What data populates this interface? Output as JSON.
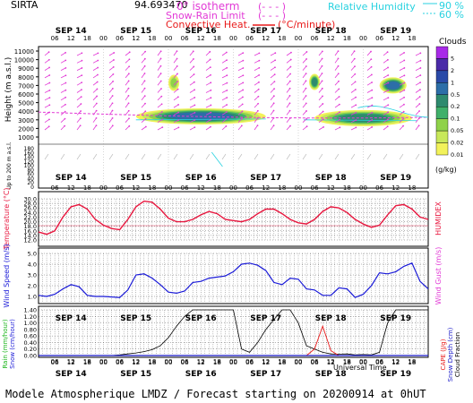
{
  "header": {
    "station": "SIRTA",
    "coords": "94.693470",
    "legend_isotherm": "0° isotherm",
    "legend_isotherm_mark": "(- - - )",
    "legend_snow_rain": "Snow-Rain Limit",
    "legend_snow_rain_mark": "(- - - )",
    "legend_convective": "Convective Heat.",
    "legend_convective_unit": "(°C/minute)",
    "legend_rh": "Relative Humidity",
    "legend_rh_90": "90 %",
    "legend_rh_60": "60 %"
  },
  "footer": {
    "model": "Modele Atmospherique LMDZ / Forecast starting on 20200914 at 0hUT",
    "time_label": "Universal Time"
  },
  "colors": {
    "temperature": "#e8173f",
    "wind": "#1a1ad8",
    "magenta": "#e23ad6",
    "cyan": "#28d2e0",
    "rain": "#18b418",
    "snow": "#2222d8",
    "cape": "#e81a1a",
    "snow_depth": "#1818c8",
    "cloud_fraction": "#000000"
  },
  "days": [
    "SEP 14",
    "SEP 15",
    "SEP 16",
    "SEP 17",
    "SEP 18",
    "SEP 19"
  ],
  "hours": [
    "06",
    "12",
    "18",
    "00"
  ],
  "chart_data": [
    {
      "type": "heatmap",
      "name": "clouds",
      "title": "Clouds",
      "ylabel": "Height (m a.s.l.)",
      "ylabel_low": "Up to 200 m a.s.l.",
      "colorbar_title": "Clouds",
      "colorbar_unit": "(g/kg)",
      "colorbar_ticks": [
        "0.01",
        "0.02",
        "0.05",
        "0.1",
        "0.2",
        "0.5",
        "1",
        "2",
        "5"
      ],
      "colorbar_colors": [
        "#f2f25a",
        "#c8e85a",
        "#8fd24a",
        "#3fb06a",
        "#2e8a6e",
        "#2c6ea8",
        "#2a4aa8",
        "#4a2aa8",
        "#a82ae8"
      ],
      "y_ticks_upper": [
        11000,
        10000,
        9000,
        8000,
        7000,
        6000,
        5000,
        4000,
        3000,
        2000,
        1000
      ],
      "y_ticks_lower": [
        180,
        160,
        140,
        120,
        100,
        80,
        60,
        40,
        20,
        0
      ],
      "cloud_layers": [
        {
          "start_h": 36,
          "end_h": 84,
          "height_m": 3400,
          "max": "0.5"
        },
        {
          "start_h": 102,
          "end_h": 138,
          "height_m": 3200,
          "max": "0.2"
        },
        {
          "start_h": 100,
          "end_h": 104,
          "height_m": 7400,
          "max": "0.2"
        },
        {
          "start_h": 126,
          "end_h": 136,
          "height_m": 7000,
          "max": "0.5"
        },
        {
          "start_h": 48,
          "end_h": 52,
          "height_m": 7300,
          "max": "0.05"
        }
      ]
    },
    {
      "type": "line",
      "name": "temperature",
      "ylabel": "Temperature (°C)",
      "ylabel_right": "HUMIDEX",
      "yticks": [
        30.0,
        28.0,
        26.0,
        24.0,
        22.0,
        20.0,
        18.0,
        16.0,
        14.0,
        12.0
      ],
      "ylim": [
        12,
        30
      ],
      "x_hours": [
        0,
        3,
        6,
        9,
        12,
        15,
        18,
        21,
        24,
        27,
        30,
        33,
        36,
        39,
        42,
        45,
        48,
        51,
        54,
        57,
        60,
        63,
        66,
        69,
        72,
        75,
        78,
        81,
        84,
        87,
        90,
        93,
        96,
        99,
        102,
        105,
        108,
        111,
        114,
        117,
        120,
        123,
        126,
        129,
        132,
        135,
        138,
        141,
        144
      ],
      "series": [
        {
          "values": [
            15.5,
            14.5,
            16,
            22,
            26.5,
            27.5,
            25.5,
            21,
            18.5,
            17,
            16.5,
            21,
            26.5,
            29,
            28.5,
            25.5,
            21.5,
            20,
            20,
            21,
            23,
            24.5,
            23.5,
            21,
            20.5,
            20,
            21,
            23.5,
            25.5,
            25.5,
            23.5,
            21,
            19.5,
            19,
            21,
            24.5,
            26.5,
            26,
            24,
            21,
            19,
            17.5,
            18.5,
            23,
            27,
            27.5,
            25.5,
            22,
            21
          ]
        }
      ]
    },
    {
      "type": "line",
      "name": "wind",
      "ylabel": "Wind Speed (m/s)",
      "ylabel_right": "Wind Gust (m/s)",
      "yticks": [
        5.0,
        4.0,
        3.0,
        2.0,
        1.0
      ],
      "ylim": [
        0.5,
        5
      ],
      "x_hours": [
        0,
        3,
        6,
        9,
        12,
        15,
        18,
        21,
        24,
        27,
        30,
        33,
        36,
        39,
        42,
        45,
        48,
        51,
        54,
        57,
        60,
        63,
        66,
        69,
        72,
        75,
        78,
        81,
        84,
        87,
        90,
        93,
        96,
        99,
        102,
        105,
        108,
        111,
        114,
        117,
        120,
        123,
        126,
        129,
        132,
        135,
        138,
        141,
        144
      ],
      "series": [
        {
          "values": [
            1.1,
            1.0,
            1.2,
            1.7,
            2.1,
            1.9,
            1.1,
            1.0,
            1.0,
            0.95,
            0.9,
            1.6,
            3.0,
            3.1,
            2.7,
            2.1,
            1.4,
            1.3,
            1.5,
            2.3,
            2.4,
            2.7,
            2.8,
            2.9,
            3.3,
            4.0,
            4.1,
            3.9,
            3.4,
            2.3,
            2.1,
            2.7,
            2.6,
            1.7,
            1.6,
            1.1,
            1.1,
            1.8,
            1.7,
            0.9,
            1.2,
            2.0,
            3.2,
            3.1,
            3.3,
            3.8,
            4.1,
            2.4,
            1.7
          ]
        }
      ]
    },
    {
      "type": "line",
      "name": "precipitation",
      "ylabel_left": [
        "Rain (mm/hour)",
        "Snow (cm/hour)"
      ],
      "ylabel_right": [
        "CAPE (J/g)",
        "Snow Depth (cm)",
        "Cloud Fraction"
      ],
      "yticks": [
        1.4,
        1.2,
        1.0,
        0.8,
        0.6,
        0.4,
        0.2,
        0.0
      ],
      "ylim": [
        0,
        1.4
      ],
      "x_hours": [
        0,
        3,
        6,
        9,
        12,
        15,
        18,
        21,
        24,
        27,
        30,
        33,
        36,
        39,
        42,
        45,
        48,
        51,
        54,
        57,
        60,
        63,
        66,
        69,
        72,
        75,
        78,
        81,
        84,
        87,
        90,
        93,
        96,
        99,
        102,
        105,
        108,
        111,
        114,
        117,
        120,
        123,
        126,
        129,
        132,
        135,
        138,
        141,
        144
      ],
      "series": [
        {
          "name": "Cloud Fraction",
          "values": [
            0,
            0,
            0,
            0,
            0,
            0,
            0,
            0,
            0,
            0,
            0.02,
            0.05,
            0.08,
            0.12,
            0.18,
            0.3,
            0.55,
            0.9,
            1.2,
            1.4,
            1.4,
            1.4,
            1.4,
            1.4,
            1.4,
            0.2,
            0.1,
            0.4,
            0.8,
            1.1,
            1.4,
            1.4,
            1.0,
            0.3,
            0.2,
            0.1,
            0.05,
            0.04,
            0.05,
            0.02,
            0.03,
            0.02,
            0.1,
            1.0,
            1.4,
            1.4,
            1.4,
            1.4,
            1.4
          ]
        },
        {
          "name": "CAPE",
          "values": [
            0,
            0,
            0,
            0,
            0,
            0,
            0,
            0,
            0,
            0,
            0,
            0,
            0,
            0,
            0,
            0,
            0,
            0,
            0,
            0,
            0,
            0,
            0,
            0,
            0,
            0,
            0,
            0,
            0,
            0,
            0,
            0,
            0,
            0,
            0.2,
            0.9,
            0.15,
            0,
            0,
            0,
            0,
            0,
            0,
            0,
            0,
            0,
            0,
            0,
            0
          ]
        }
      ]
    }
  ]
}
